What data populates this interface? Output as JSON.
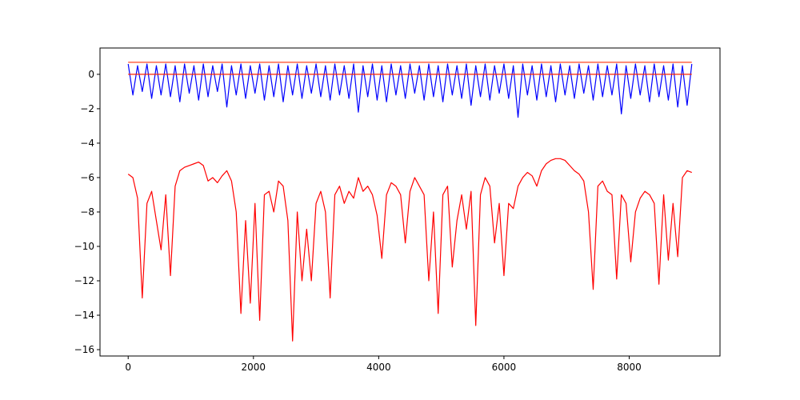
{
  "chart_data": {
    "type": "line",
    "x": [
      0,
      75,
      150,
      225,
      300,
      375,
      450,
      525,
      600,
      675,
      750,
      825,
      900,
      975,
      1050,
      1125,
      1200,
      1275,
      1350,
      1425,
      1500,
      1575,
      1650,
      1725,
      1800,
      1875,
      1950,
      2025,
      2100,
      2175,
      2250,
      2325,
      2400,
      2475,
      2550,
      2625,
      2700,
      2775,
      2850,
      2925,
      3000,
      3075,
      3150,
      3225,
      3300,
      3375,
      3450,
      3525,
      3600,
      3675,
      3750,
      3825,
      3900,
      3975,
      4050,
      4125,
      4200,
      4275,
      4350,
      4425,
      4500,
      4575,
      4650,
      4725,
      4800,
      4875,
      4950,
      5025,
      5100,
      5175,
      5250,
      5325,
      5400,
      5475,
      5550,
      5625,
      5700,
      5775,
      5850,
      5925,
      6000,
      6075,
      6150,
      6225,
      6300,
      6375,
      6450,
      6525,
      6600,
      6675,
      6750,
      6825,
      6900,
      6975,
      7050,
      7125,
      7200,
      7275,
      7350,
      7425,
      7500,
      7575,
      7650,
      7725,
      7800,
      7875,
      7950,
      8025,
      8100,
      8175,
      8250,
      8325,
      8400,
      8475,
      8550,
      8625,
      8700,
      8775,
      8850,
      8925,
      9000
    ],
    "series": [
      {
        "color": "#0000ff",
        "values": [
          0.6,
          -1.2,
          0.5,
          -1.0,
          0.6,
          -1.4,
          0.5,
          -1.2,
          0.6,
          -1.3,
          0.5,
          -1.6,
          0.6,
          -1.1,
          0.5,
          -1.5,
          0.6,
          -1.3,
          0.5,
          -1.0,
          0.6,
          -1.9,
          0.5,
          -1.2,
          0.6,
          -1.4,
          0.5,
          -1.1,
          0.6,
          -1.5,
          0.5,
          -1.3,
          0.6,
          -1.6,
          0.5,
          -1.2,
          0.6,
          -1.4,
          0.5,
          -1.1,
          0.6,
          -1.3,
          0.5,
          -1.5,
          0.6,
          -1.2,
          0.5,
          -1.4,
          0.6,
          -2.2,
          0.5,
          -1.3,
          0.6,
          -1.5,
          0.5,
          -1.6,
          0.6,
          -1.2,
          0.5,
          -1.4,
          0.6,
          -1.1,
          0.5,
          -1.5,
          0.6,
          -1.3,
          0.5,
          -1.6,
          0.6,
          -1.2,
          0.5,
          -1.4,
          0.6,
          -1.8,
          0.5,
          -1.3,
          0.6,
          -1.5,
          0.5,
          -1.1,
          0.6,
          -1.4,
          0.5,
          -2.5,
          0.6,
          -1.2,
          0.5,
          -1.5,
          0.6,
          -1.3,
          0.5,
          -1.6,
          0.6,
          -1.2,
          0.5,
          -1.4,
          0.6,
          -1.1,
          0.5,
          -1.5,
          0.6,
          -1.3,
          0.5,
          -1.2,
          0.6,
          -2.3,
          0.5,
          -1.4,
          0.6,
          -1.2,
          0.5,
          -1.6,
          0.6,
          -1.3,
          0.5,
          -1.5,
          0.6,
          -1.9,
          0.5,
          -1.8,
          0.6
        ]
      },
      {
        "color": "#ff0000",
        "values": [
          -5.8,
          -6.0,
          -7.2,
          -13.0,
          -7.5,
          -6.8,
          -8.5,
          -10.2,
          -7.0,
          -11.7,
          -6.5,
          -5.6,
          -5.4,
          -5.3,
          -5.2,
          -5.1,
          -5.3,
          -6.2,
          -6.0,
          -6.3,
          -5.9,
          -5.6,
          -6.2,
          -8.0,
          -13.9,
          -8.5,
          -13.3,
          -7.5,
          -14.3,
          -7.0,
          -6.8,
          -8.0,
          -6.2,
          -6.5,
          -8.5,
          -15.5,
          -8.0,
          -12.0,
          -9.0,
          -12.0,
          -7.5,
          -6.8,
          -8.0,
          -13.0,
          -7.0,
          -6.5,
          -7.5,
          -6.8,
          -7.2,
          -6.0,
          -6.8,
          -6.5,
          -7.0,
          -8.2,
          -10.7,
          -7.0,
          -6.3,
          -6.5,
          -7.0,
          -9.8,
          -6.8,
          -6.0,
          -6.5,
          -7.0,
          -12.0,
          -8.0,
          -13.9,
          -7.0,
          -6.5,
          -11.2,
          -8.5,
          -7.0,
          -9.0,
          -6.8,
          -14.6,
          -7.0,
          -6.0,
          -6.5,
          -9.8,
          -7.5,
          -11.7,
          -7.5,
          -7.8,
          -6.5,
          -6.0,
          -5.7,
          -5.9,
          -6.5,
          -5.6,
          -5.2,
          -5.0,
          -4.9,
          -4.9,
          -5.0,
          -5.3,
          -5.6,
          -5.8,
          -6.2,
          -8.0,
          -12.5,
          -6.5,
          -6.2,
          -6.8,
          -7.0,
          -11.9,
          -7.0,
          -7.5,
          -10.9,
          -8.0,
          -7.2,
          -6.8,
          -7.0,
          -7.5,
          -12.2,
          -7.0,
          -10.8,
          -7.5,
          -10.6,
          -6.0,
          -5.6,
          -5.7
        ]
      }
    ],
    "hlines": [
      {
        "value": 0,
        "color": "#ff2200"
      },
      {
        "value": 0.7,
        "color": "#ff4422"
      }
    ],
    "xlim": [
      -450,
      9450
    ],
    "ylim": [
      -16.37,
      1.53
    ],
    "xticks": [
      0,
      2000,
      4000,
      6000,
      8000
    ],
    "yticks": [
      {
        "value": -16,
        "label": "−16"
      },
      {
        "value": -14,
        "label": "−14"
      },
      {
        "value": -12,
        "label": "−12"
      },
      {
        "value": -10,
        "label": "−10"
      },
      {
        "value": -8,
        "label": "−8"
      },
      {
        "value": -6,
        "label": "−6"
      },
      {
        "value": -4,
        "label": "−4"
      },
      {
        "value": -2,
        "label": "−2"
      },
      0
    ],
    "grid": false
  }
}
